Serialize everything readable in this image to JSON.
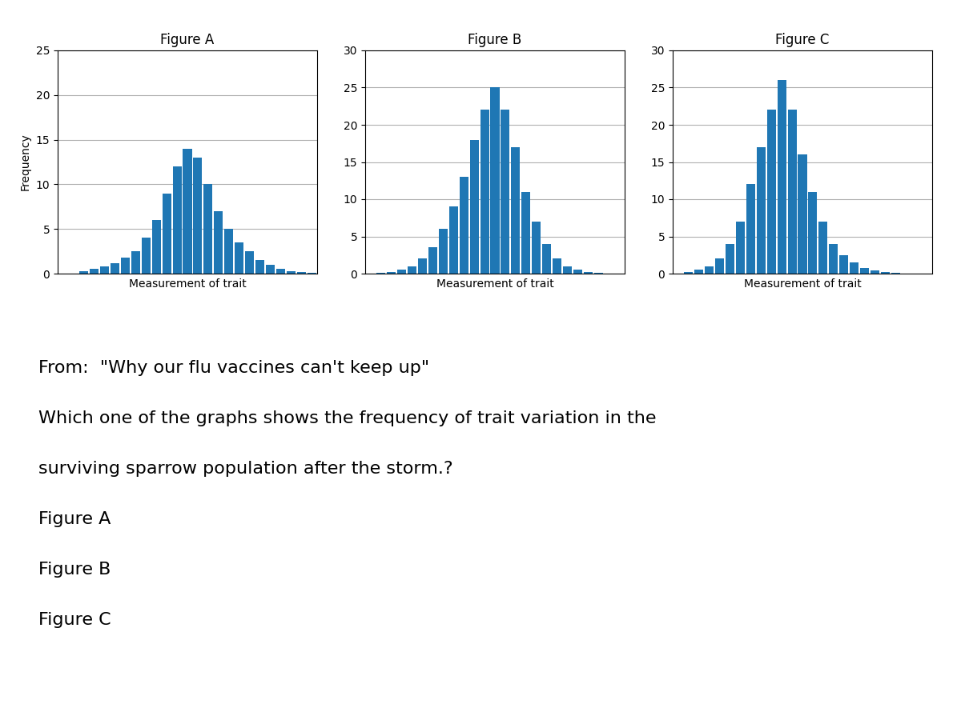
{
  "chart_data": [
    {
      "type": "bar",
      "title": "Figure A",
      "x_label": "Measurement of trait",
      "y_label": "Frequency",
      "categories": [
        null,
        null,
        null,
        null,
        null,
        null,
        null,
        null,
        null,
        null,
        null,
        null,
        null,
        null,
        null,
        null,
        null,
        null,
        null,
        null,
        null,
        null,
        null,
        null,
        null
      ],
      "values": [
        0,
        0,
        0.3,
        0.5,
        0.8,
        1.2,
        1.8,
        2.5,
        4,
        6,
        9,
        12,
        14,
        13,
        10,
        7,
        5,
        3.5,
        2.5,
        1.5,
        1,
        0.5,
        0.3,
        0.2,
        0.1
      ],
      "ylim": [
        0,
        25
      ],
      "yticks": [
        0,
        5,
        10,
        15,
        20,
        25
      ],
      "grid": true,
      "tick_labels": "y"
    },
    {
      "type": "bar",
      "title": "Figure B",
      "x_label": "Measurement of trait",
      "categories": [
        null,
        null,
        null,
        null,
        null,
        null,
        null,
        null,
        null,
        null,
        null,
        null,
        null,
        null,
        null,
        null,
        null,
        null,
        null,
        null,
        null,
        null,
        null,
        null,
        null
      ],
      "values": [
        0,
        0.1,
        0.2,
        0.5,
        1,
        2,
        3.5,
        6,
        9,
        13,
        18,
        22,
        25,
        22,
        17,
        11,
        7,
        4,
        2,
        1,
        0.5,
        0.2,
        0.1,
        0,
        0
      ],
      "ylim": [
        0,
        30
      ],
      "yticks": [
        0,
        5,
        10,
        15,
        20,
        25,
        30
      ],
      "grid": true,
      "tick_labels": "y"
    },
    {
      "type": "bar",
      "title": "Figure C",
      "x_label": "Measurement of trait",
      "categories": [
        null,
        null,
        null,
        null,
        null,
        null,
        null,
        null,
        null,
        null,
        null,
        null,
        null,
        null,
        null,
        null,
        null,
        null,
        null,
        null,
        null,
        null,
        null,
        null,
        null
      ],
      "values": [
        0,
        0.2,
        0.5,
        1,
        2,
        4,
        7,
        12,
        17,
        22,
        26,
        22,
        16,
        11,
        7,
        4,
        2.5,
        1.5,
        0.8,
        0.4,
        0.2,
        0.1,
        0,
        0,
        0
      ],
      "ylim": [
        0,
        30
      ],
      "yticks": [
        0,
        5,
        10,
        15,
        20,
        25,
        30
      ],
      "grid": true,
      "tick_labels": "y"
    }
  ],
  "annotations": [
    "From:  \"Why our flu vaccines can't keep up\"",
    "Which one of the graphs shows the frequency of trait variation in the",
    "surviving sparrow population after the storm.?",
    "Figure A",
    "Figure B",
    "Figure C"
  ]
}
